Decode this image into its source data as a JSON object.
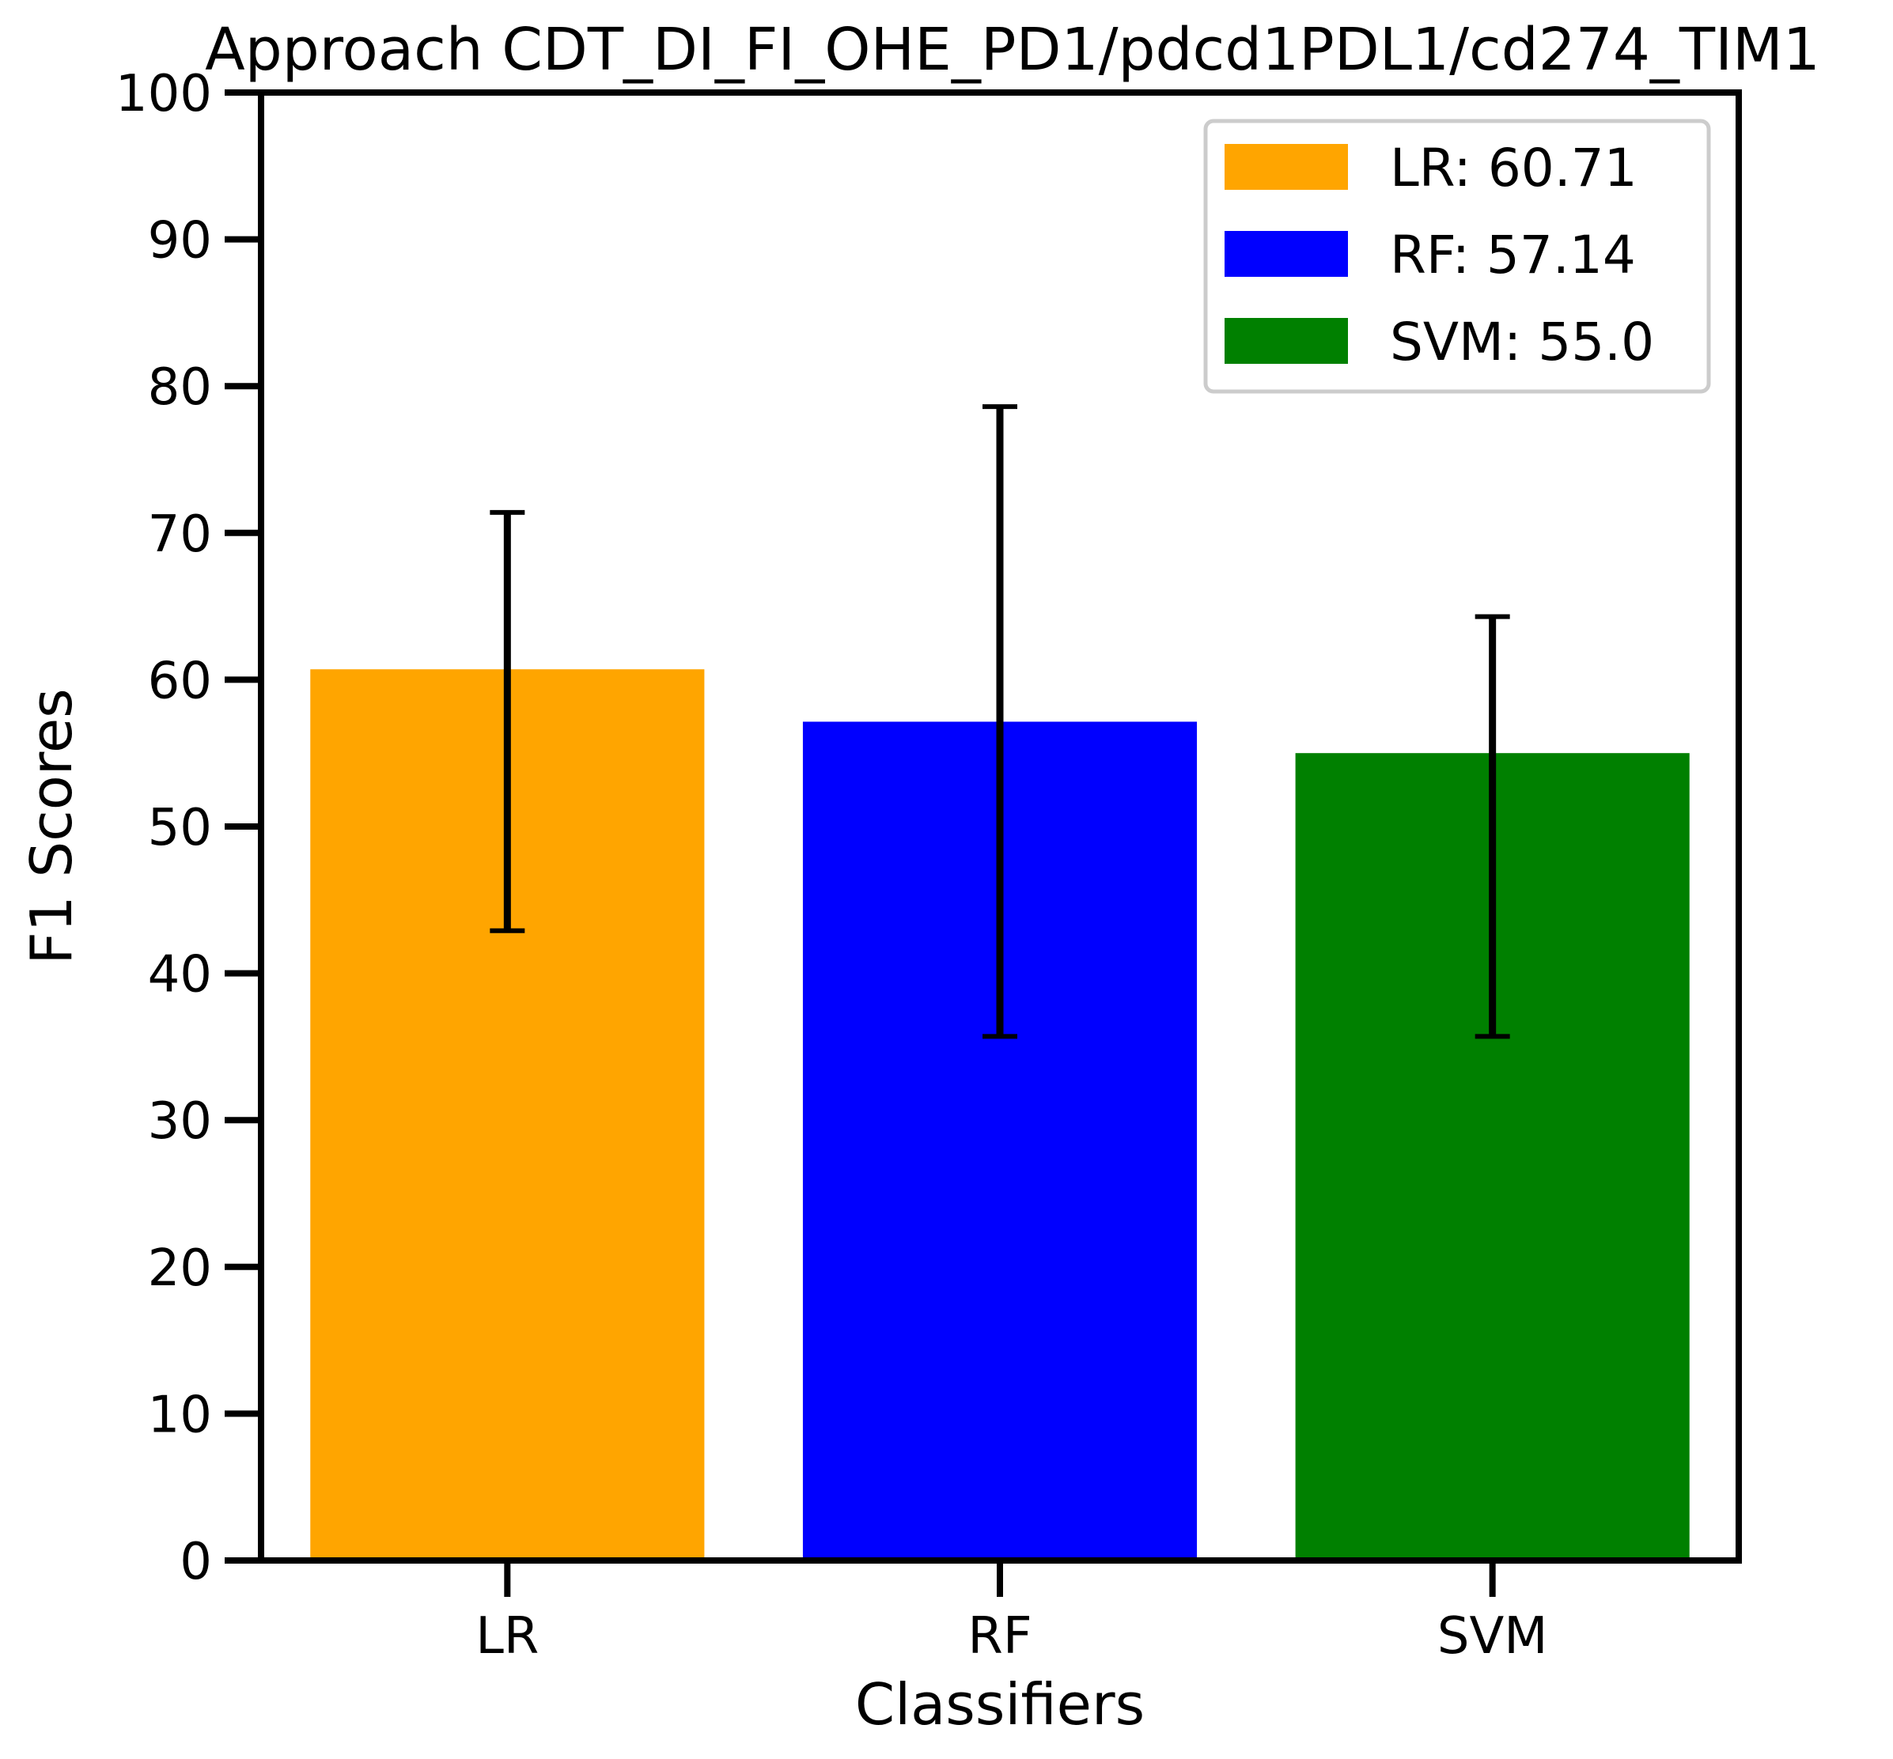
{
  "chart_data": {
    "type": "bar",
    "title": "Approach CDT_DI_FI_OHE_PD1/pdcd1PDL1/cd274_TIM1",
    "xlabel": "Classifiers",
    "ylabel": "F1 Scores",
    "categories": [
      "LR",
      "RF",
      "SVM"
    ],
    "values": [
      60.71,
      57.14,
      55.0
    ],
    "error_low": [
      42.9,
      35.7,
      35.7
    ],
    "error_high": [
      71.4,
      78.6,
      64.3
    ],
    "colors": [
      "#FFA500",
      "#0000FF",
      "#008000"
    ],
    "ylim": [
      0,
      100
    ],
    "yticks": [
      0,
      10,
      20,
      30,
      40,
      50,
      60,
      70,
      80,
      90,
      100
    ],
    "grid": false,
    "legend": {
      "placement": "top-right",
      "entries": [
        "LR: 60.71",
        "RF: 57.14",
        "SVM: 55.0"
      ]
    }
  }
}
